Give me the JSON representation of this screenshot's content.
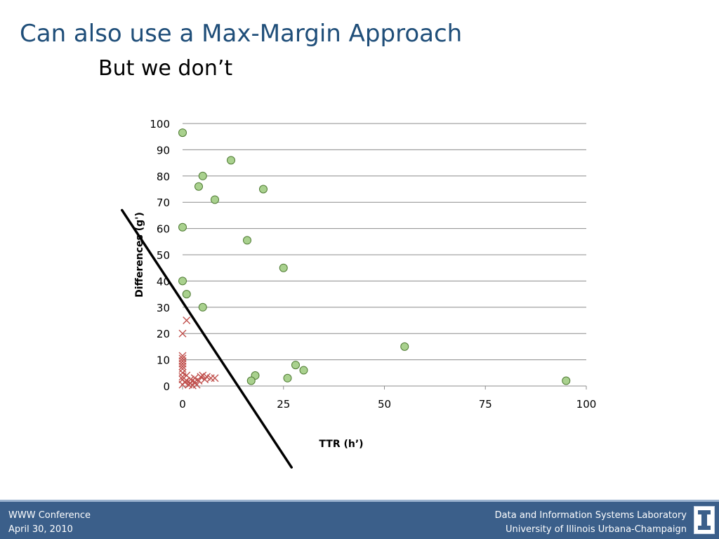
{
  "slide": {
    "title": "Can also use a Max-Margin Approach",
    "subtitle": "But we don’t"
  },
  "footer": {
    "left_line1": "WWW Conference",
    "left_line2": "April 30, 2010",
    "right_line1": "Data and Information Systems Laboratory",
    "right_line2": "University of Illinois Urbana-Champaign",
    "logo_icon": "illinois-i-logo-icon",
    "bar_color": "#3b5f8a"
  },
  "chart_data": {
    "type": "scatter",
    "xlabel": "TTR (h’)",
    "ylabel": "Differences (g')",
    "xlim": [
      0,
      100
    ],
    "ylim": [
      0,
      100
    ],
    "xticks": [
      0,
      25,
      50,
      75,
      100
    ],
    "yticks": [
      0,
      10,
      20,
      30,
      40,
      50,
      60,
      70,
      80,
      90,
      100
    ],
    "grid": "horizontal",
    "series": [
      {
        "marker": "circle",
        "color": "#a9d18e",
        "edge_color": "#4e7a32",
        "points": [
          [
            0,
            96.5
          ],
          [
            12,
            86
          ],
          [
            5,
            80
          ],
          [
            4,
            76
          ],
          [
            20,
            75
          ],
          [
            8,
            71
          ],
          [
            0,
            60.5
          ],
          [
            16,
            55.5
          ],
          [
            25,
            45
          ],
          [
            0,
            40
          ],
          [
            1,
            35
          ],
          [
            5,
            30
          ],
          [
            55,
            15
          ],
          [
            28,
            8
          ],
          [
            30,
            6
          ],
          [
            18,
            4
          ],
          [
            17,
            2
          ],
          [
            26,
            3
          ],
          [
            95,
            2
          ]
        ]
      },
      {
        "marker": "x",
        "color": "#c0504d",
        "points": [
          [
            1,
            25
          ],
          [
            0,
            20
          ],
          [
            0,
            11.5
          ],
          [
            0,
            10.5
          ],
          [
            0,
            9.5
          ],
          [
            0,
            8.5
          ],
          [
            0,
            7.5
          ],
          [
            0,
            6.5
          ],
          [
            0,
            5
          ],
          [
            1,
            4
          ],
          [
            0,
            3.5
          ],
          [
            0,
            2.5
          ],
          [
            0.5,
            1.5
          ],
          [
            0,
            0.5
          ],
          [
            1,
            2
          ],
          [
            2,
            1
          ],
          [
            2,
            2.5
          ],
          [
            3,
            1.5
          ],
          [
            3.5,
            0.5
          ],
          [
            4,
            2
          ],
          [
            4.5,
            3.5
          ],
          [
            5,
            4
          ],
          [
            5.5,
            2.5
          ],
          [
            7,
            3
          ],
          [
            8,
            3
          ],
          [
            6,
            3.5
          ],
          [
            1.5,
            0.5
          ],
          [
            2.5,
            0.2
          ],
          [
            3,
            3
          ]
        ]
      }
    ],
    "annotation": {
      "type": "line",
      "color": "#000000",
      "from": [
        -15,
        67
      ],
      "to": [
        27,
        -31
      ]
    }
  }
}
